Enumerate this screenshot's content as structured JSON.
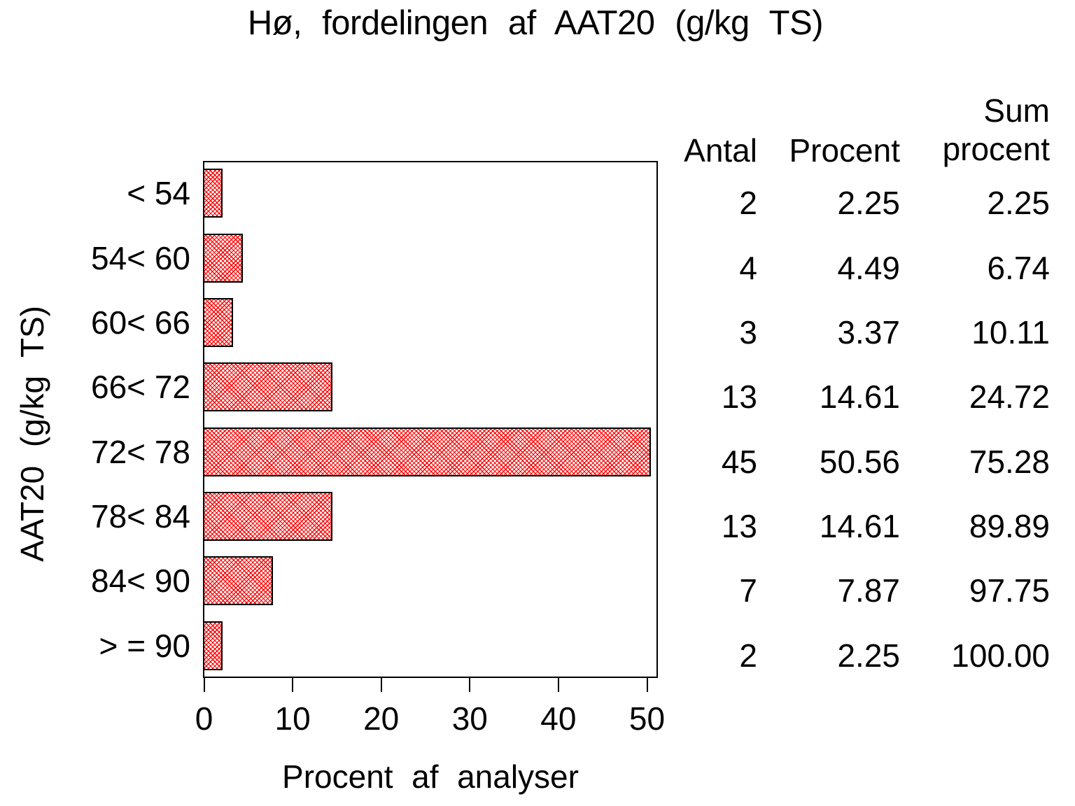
{
  "title": "Hø, fordelingen af AAT20 (g/kg TS)",
  "chart_data": {
    "type": "bar",
    "orientation": "horizontal",
    "title": "Hø, fordelingen af AAT20 (g/kg TS)",
    "categories": [
      "< 54",
      "54< 60",
      "60< 66",
      "66< 72",
      "72< 78",
      "78< 84",
      "84< 90",
      "> = 90"
    ],
    "values": [
      2.25,
      4.49,
      3.37,
      14.61,
      50.56,
      14.61,
      7.87,
      2.25
    ],
    "counts": [
      2,
      4,
      3,
      13,
      45,
      13,
      7,
      2
    ],
    "cum_percent": [
      2.25,
      6.74,
      10.11,
      24.72,
      75.28,
      89.89,
      97.75,
      100.0
    ],
    "xlabel": "Procent af analyser",
    "ylabel": "AAT20 (g/kg TS)",
    "xlim": [
      0,
      50
    ],
    "xticks": [
      "0",
      "10",
      "20",
      "30",
      "40",
      "50"
    ],
    "grid": false,
    "legend_position": "none",
    "bar_pattern": "red-crosshatch",
    "bar_color": "#ff0000",
    "bar_outline": "#000000"
  },
  "table": {
    "headers": {
      "antal": "Antal",
      "procent": "Procent",
      "sum_line1": "Sum",
      "sum_line2": "procent"
    },
    "rows": [
      [
        "2",
        "2.25",
        "2.25"
      ],
      [
        "4",
        "4.49",
        "6.74"
      ],
      [
        "3",
        "3.37",
        "10.11"
      ],
      [
        "13",
        "14.61",
        "24.72"
      ],
      [
        "45",
        "50.56",
        "75.28"
      ],
      [
        "13",
        "14.61",
        "89.89"
      ],
      [
        "7",
        "7.87",
        "97.75"
      ],
      [
        "2",
        "2.25",
        "100.00"
      ]
    ]
  },
  "colors": {
    "bar": "#ff0000",
    "outline": "#000000",
    "text": "#000000",
    "background": "#ffffff"
  }
}
